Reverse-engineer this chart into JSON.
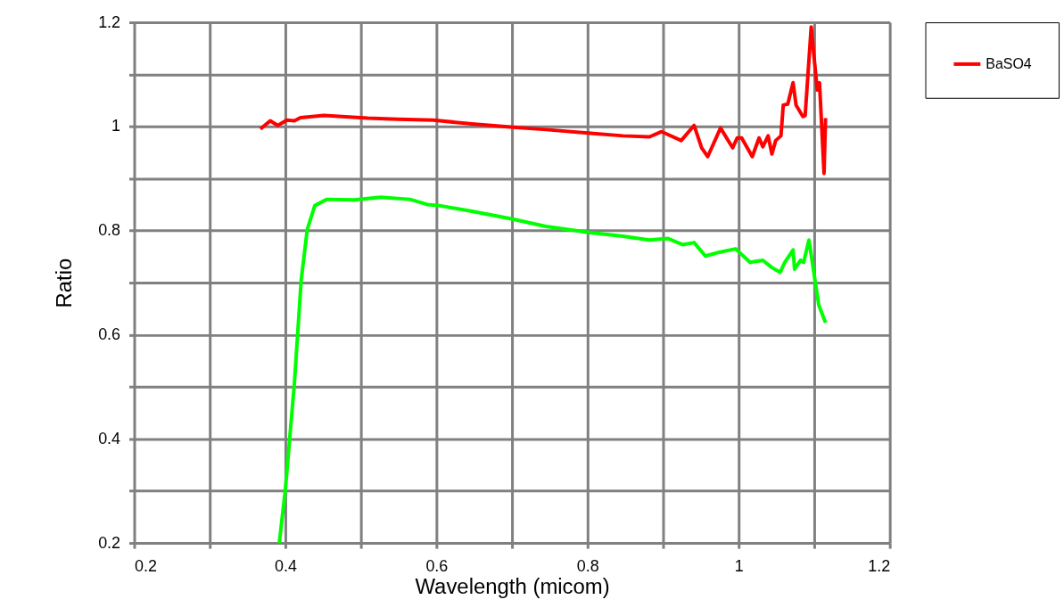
{
  "chart_data": {
    "type": "line",
    "xlabel": "Wavelength (micom)",
    "ylabel": "Ratio",
    "xlim": [
      0.2,
      1.2
    ],
    "ylim": [
      0.2,
      1.2
    ],
    "xticks": [
      0.2,
      {
        "value": 0.3,
        "label": null
      },
      0.4,
      {
        "value": 0.5,
        "label": null
      },
      0.6,
      {
        "value": 0.7,
        "label": null
      },
      0.8,
      {
        "value": 0.9,
        "label": null
      },
      1,
      {
        "value": 1.1,
        "label": null
      },
      1.2
    ],
    "yticks": [
      0.2,
      {
        "value": 0.3,
        "label": null
      },
      0.4,
      {
        "value": 0.5,
        "label": null
      },
      0.6,
      {
        "value": 0.7,
        "label": null
      },
      0.8,
      {
        "value": 0.9,
        "label": null
      },
      1,
      {
        "value": 1.1,
        "label": null
      },
      1.2
    ],
    "grid": true,
    "legend": "right",
    "marker": "none",
    "line_style": "solid",
    "series": [
      {
        "name": "BaSO4",
        "color": "#ff0000",
        "x": [
          0.367,
          0.38,
          0.39,
          0.402,
          0.412,
          0.42,
          0.451,
          0.509,
          0.549,
          0.596,
          0.647,
          0.698,
          0.745,
          0.804,
          0.847,
          0.882,
          0.898,
          0.924,
          0.941,
          0.951,
          0.959,
          0.976,
          0.992,
          0.998,
          1.004,
          1.018,
          1.027,
          1.032,
          1.039,
          1.044,
          1.049,
          1.056,
          1.059,
          1.065,
          1.072,
          1.076,
          1.085,
          1.088,
          1.096,
          1.104,
          1.107,
          1.113,
          1.115
        ],
        "values": [
          0.995,
          1.011,
          1.002,
          1.012,
          1.011,
          1.017,
          1.021,
          1.016,
          1.014,
          1.012,
          1.005,
          0.999,
          0.994,
          0.987,
          0.982,
          0.98,
          0.99,
          0.973,
          1.002,
          0.959,
          0.942,
          0.997,
          0.959,
          0.978,
          0.978,
          0.942,
          0.978,
          0.961,
          0.982,
          0.947,
          0.973,
          0.982,
          1.041,
          1.043,
          1.084,
          1.041,
          1.019,
          1.021,
          1.191,
          1.07,
          1.084,
          0.91,
          1.016
        ]
      },
      {
        "color": "#00ff00",
        "x": [
          0.392,
          0.4,
          0.412,
          0.421,
          0.429,
          0.439,
          0.455,
          0.491,
          0.526,
          0.565,
          0.588,
          0.604,
          0.647,
          0.698,
          0.745,
          0.804,
          0.847,
          0.882,
          0.906,
          0.926,
          0.941,
          0.956,
          0.973,
          0.996,
          1.015,
          1.032,
          1.044,
          1.055,
          1.061,
          1.072,
          1.074,
          1.082,
          1.086,
          1.093,
          1.106,
          1.115
        ],
        "values": [
          0.2,
          0.302,
          0.507,
          0.705,
          0.802,
          0.848,
          0.86,
          0.859,
          0.864,
          0.86,
          0.85,
          0.848,
          0.837,
          0.823,
          0.808,
          0.796,
          0.789,
          0.782,
          0.785,
          0.773,
          0.777,
          0.751,
          0.758,
          0.765,
          0.739,
          0.743,
          0.729,
          0.72,
          0.739,
          0.763,
          0.726,
          0.743,
          0.739,
          0.782,
          0.657,
          0.623
        ]
      }
    ]
  }
}
